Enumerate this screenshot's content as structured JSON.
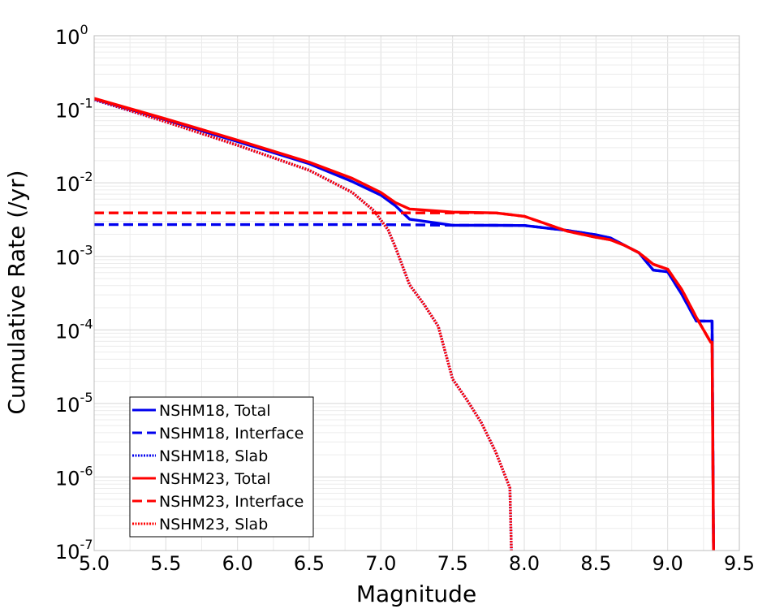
{
  "chart_data": {
    "type": "line",
    "xlabel": "Magnitude",
    "ylabel": "Cumulative Rate (/yr)",
    "xlim": [
      5.0,
      9.5
    ],
    "ylim": [
      1e-07,
      1
    ],
    "yscale": "log",
    "grid": true,
    "legend_position": "lower-left",
    "x_ticks": [
      "5.0",
      "5.5",
      "6.0",
      "6.5",
      "7.0",
      "7.5",
      "8.0",
      "8.5",
      "9.0",
      "9.5"
    ],
    "y_ticks": [
      {
        "base": "10",
        "exp": "0"
      },
      {
        "base": "10",
        "exp": "-1"
      },
      {
        "base": "10",
        "exp": "-2"
      },
      {
        "base": "10",
        "exp": "-3"
      },
      {
        "base": "10",
        "exp": "-4"
      },
      {
        "base": "10",
        "exp": "-5"
      },
      {
        "base": "10",
        "exp": "-6"
      },
      {
        "base": "10",
        "exp": "-7"
      }
    ],
    "colors": {
      "nshm18": "#0000ee",
      "nshm23": "#ff0000"
    },
    "series": [
      {
        "name": "NSHM18, Total",
        "color": "#0000ee",
        "style": "solid",
        "x": [
          5.0,
          5.5,
          6.0,
          6.5,
          6.8,
          7.0,
          7.1,
          7.2,
          7.5,
          7.8,
          8.0,
          8.3,
          8.5,
          8.6,
          8.7,
          8.8,
          8.9,
          9.0,
          9.1,
          9.2,
          9.3,
          9.31,
          9.32
        ],
        "y": [
          0.138,
          0.0718,
          0.0363,
          0.0182,
          0.0104,
          0.0068,
          0.0049,
          0.0032,
          0.00265,
          0.00264,
          0.00263,
          0.00225,
          0.00196,
          0.00178,
          0.00141,
          0.00112,
          0.00065,
          0.000617,
          0.000302,
          0.000132,
          0.000132,
          0.000132,
          1e-07
        ]
      },
      {
        "name": "NSHM18, Interface",
        "color": "#0000ee",
        "style": "dashed",
        "x": [
          5.0,
          5.5,
          6.0,
          6.5,
          7.0,
          7.5,
          7.8,
          8.0,
          8.3,
          8.5,
          8.6,
          8.7,
          8.8,
          8.9,
          9.0,
          9.1,
          9.2,
          9.3,
          9.31,
          9.32
        ],
        "y": [
          0.0027,
          0.0027,
          0.0027,
          0.0027,
          0.0027,
          0.00265,
          0.00264,
          0.00263,
          0.00225,
          0.00196,
          0.00178,
          0.00141,
          0.00112,
          0.00065,
          0.000617,
          0.000302,
          0.000132,
          0.000132,
          0.000132,
          1e-07
        ]
      },
      {
        "name": "NSHM18, Slab",
        "color": "#0000ee",
        "style": "dotted",
        "x": [
          5.0,
          5.5,
          6.0,
          6.5,
          6.8,
          6.95,
          7.05,
          7.1,
          7.2,
          7.3,
          7.4,
          7.5,
          7.6,
          7.7,
          7.8,
          7.9,
          7.91
        ],
        "y": [
          0.135,
          0.0676,
          0.0324,
          0.0148,
          0.0074,
          0.0042,
          0.0023,
          0.00135,
          0.00041,
          0.000224,
          0.000112,
          2.14e-05,
          1.12e-05,
          5.5e-06,
          2.2e-06,
          7.1e-07,
          1e-07
        ]
      },
      {
        "name": "NSHM23, Total",
        "color": "#ff0000",
        "style": "solid",
        "x": [
          5.0,
          5.5,
          6.0,
          6.5,
          6.8,
          7.0,
          7.1,
          7.2,
          7.5,
          7.8,
          8.0,
          8.3,
          8.5,
          8.6,
          8.7,
          8.8,
          8.9,
          9.0,
          9.1,
          9.2,
          9.3,
          9.31,
          9.32
        ],
        "y": [
          0.141,
          0.0741,
          0.038,
          0.0191,
          0.0115,
          0.0074,
          0.0054,
          0.0044,
          0.004,
          0.0039,
          0.0035,
          0.0022,
          0.00182,
          0.00168,
          0.00141,
          0.00112,
          0.00078,
          0.00067,
          0.00035,
          0.000148,
          6.8e-05,
          6.8e-05,
          1e-07
        ]
      },
      {
        "name": "NSHM23, Interface",
        "color": "#ff0000",
        "style": "dashed",
        "x": [
          5.0,
          5.5,
          6.0,
          6.5,
          7.0,
          7.5,
          7.8,
          8.0,
          8.3,
          8.5,
          8.6,
          8.7,
          8.8,
          8.9,
          9.0,
          9.1,
          9.2,
          9.3,
          9.31,
          9.32
        ],
        "y": [
          0.0039,
          0.0039,
          0.0039,
          0.0039,
          0.0039,
          0.0039,
          0.0039,
          0.0035,
          0.0022,
          0.00182,
          0.00168,
          0.00141,
          0.00112,
          0.00078,
          0.00067,
          0.00035,
          0.000148,
          6.8e-05,
          6.8e-05,
          1e-07
        ]
      },
      {
        "name": "NSHM23, Slab",
        "color": "#ff0000",
        "style": "dotted",
        "x": [
          5.0,
          5.5,
          6.0,
          6.5,
          6.8,
          6.95,
          7.05,
          7.1,
          7.2,
          7.3,
          7.4,
          7.5,
          7.6,
          7.7,
          7.8,
          7.9,
          7.91
        ],
        "y": [
          0.137,
          0.0676,
          0.0324,
          0.0148,
          0.0074,
          0.0042,
          0.0023,
          0.00135,
          0.00041,
          0.000224,
          0.000112,
          2.14e-05,
          1.12e-05,
          5.5e-06,
          2.2e-06,
          7.1e-07,
          1e-07
        ]
      }
    ]
  }
}
